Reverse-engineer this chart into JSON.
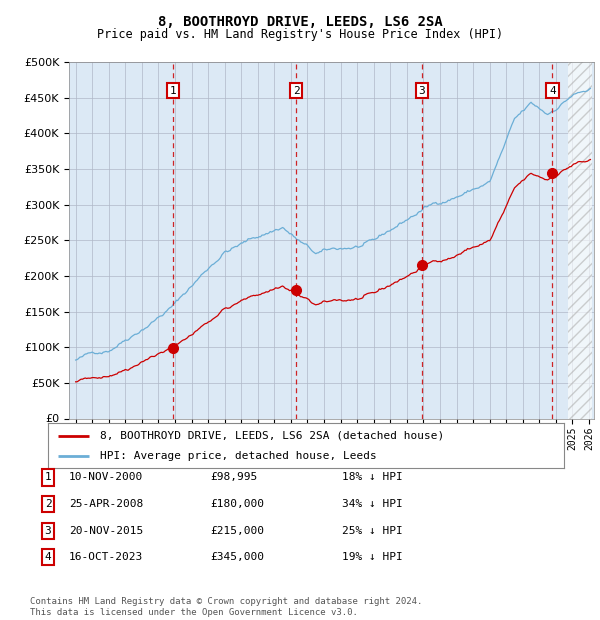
{
  "title": "8, BOOTHROYD DRIVE, LEEDS, LS6 2SA",
  "subtitle": "Price paid vs. HM Land Registry's House Price Index (HPI)",
  "ylim": [
    0,
    500000
  ],
  "yticks": [
    0,
    50000,
    100000,
    150000,
    200000,
    250000,
    300000,
    350000,
    400000,
    450000,
    500000
  ],
  "plot_bg_color": "#dce9f5",
  "sales": [
    {
      "label": "1",
      "date_num": 2000.87,
      "price": 98995
    },
    {
      "label": "2",
      "date_num": 2008.32,
      "price": 180000
    },
    {
      "label": "3",
      "date_num": 2015.9,
      "price": 215000
    },
    {
      "label": "4",
      "date_num": 2023.79,
      "price": 345000
    }
  ],
  "sale_dates_str": [
    "10-NOV-2000",
    "25-APR-2008",
    "20-NOV-2015",
    "16-OCT-2023"
  ],
  "sale_prices_str": [
    "£98,995",
    "£180,000",
    "£215,000",
    "£345,000"
  ],
  "sale_hpi_str": [
    "18% ↓ HPI",
    "34% ↓ HPI",
    "25% ↓ HPI",
    "19% ↓ HPI"
  ],
  "legend_entries": [
    "8, BOOTHROYD DRIVE, LEEDS, LS6 2SA (detached house)",
    "HPI: Average price, detached house, Leeds"
  ],
  "footer": "Contains HM Land Registry data © Crown copyright and database right 2024.\nThis data is licensed under the Open Government Licence v3.0.",
  "hpi_color": "#6baed6",
  "sale_color": "#cc0000",
  "grid_color": "#b0b8c8"
}
